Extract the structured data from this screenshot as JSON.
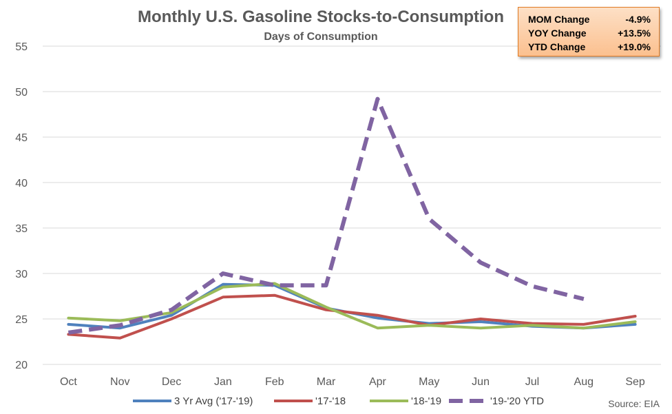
{
  "chart_data": {
    "type": "line",
    "title": "Monthly U.S. Gasoline Stocks-to-Consumption",
    "subtitle": "Days of Consumption",
    "xlabel": "",
    "ylabel": "",
    "ylim": [
      20,
      55
    ],
    "yticks": [
      "20",
      "25",
      "30",
      "35",
      "40",
      "45",
      "50",
      "55"
    ],
    "categories": [
      "Oct",
      "Nov",
      "Dec",
      "Jan",
      "Feb",
      "Mar",
      "Apr",
      "May",
      "Jun",
      "Jul",
      "Aug",
      "Sep"
    ],
    "grid": true,
    "legend_position": "bottom",
    "series": [
      {
        "name": "3 Yr Avg ('17-'19)",
        "color": "#4f81bd",
        "dash": false,
        "values": [
          24.4,
          24.0,
          25.4,
          28.8,
          28.7,
          26.2,
          25.1,
          24.5,
          24.7,
          24.2,
          24.0,
          24.4
        ]
      },
      {
        "name": "'17-'18",
        "color": "#c0504d",
        "dash": false,
        "values": [
          23.3,
          22.9,
          25.0,
          27.4,
          27.6,
          26.0,
          25.4,
          24.3,
          25.0,
          24.5,
          24.4,
          25.3
        ]
      },
      {
        "name": "'18-'19",
        "color": "#9bbb59",
        "dash": false,
        "values": [
          25.1,
          24.8,
          25.7,
          28.5,
          28.9,
          26.3,
          24.0,
          24.3,
          24.0,
          24.3,
          24.0,
          24.7
        ]
      },
      {
        "name": "'19-'20 YTD",
        "color": "#8064a2",
        "dash": true,
        "values": [
          23.5,
          24.3,
          26.0,
          30.0,
          28.7,
          28.7,
          49.2,
          36.0,
          31.2,
          28.6,
          27.2,
          null
        ]
      }
    ]
  },
  "stats": [
    {
      "label": "MOM Change",
      "value": "-4.9%"
    },
    {
      "label": "YOY Change",
      "value": "+13.5%"
    },
    {
      "label": "YTD Change",
      "value": "+19.0%"
    }
  ],
  "source": "Source: EIA"
}
